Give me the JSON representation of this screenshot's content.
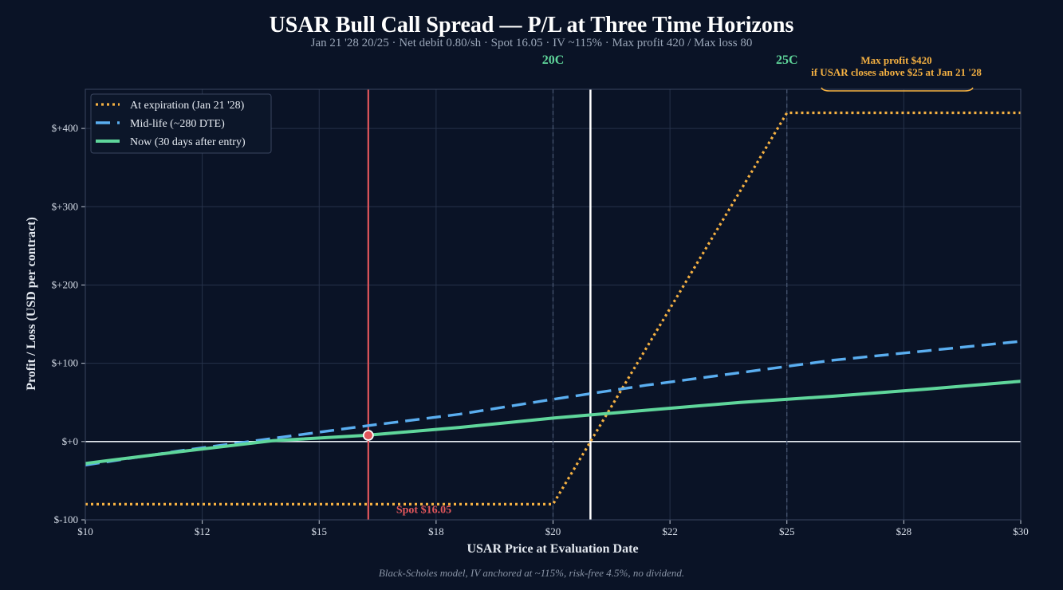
{
  "title": "USAR Bull Call Spread — P/L at Three Time Horizons",
  "subtitle": "Jan 21 '28 20/25 · Net debit 0.80/sh · Spot 16.05 · IV ~115% · Max profit 420 / Max loss 80",
  "footnote": "Black-Scholes model, IV anchored at ~115%, risk-free 4.5%, no dividend.",
  "colors": {
    "background": "#0a1326",
    "expiration": "#f5b142",
    "midlife": "#5aaef0",
    "now": "#5fd69b",
    "spot": "#e0565b",
    "breakeven": "#ffffff",
    "grid": "#26324a"
  },
  "chart_data": {
    "type": "line",
    "xlabel": "USAR Price at Evaluation Date",
    "ylabel": "Profit / Loss (USD per contract)",
    "xlim": [
      10,
      30
    ],
    "ylim": [
      -100,
      450
    ],
    "x_ticks": [
      {
        "value": 10,
        "label": "$10"
      },
      {
        "value": 12.5,
        "label": "$12"
      },
      {
        "value": 15,
        "label": "$15"
      },
      {
        "value": 17.5,
        "label": "$18"
      },
      {
        "value": 20,
        "label": "$20"
      },
      {
        "value": 22.5,
        "label": "$22"
      },
      {
        "value": 25,
        "label": "$25"
      },
      {
        "value": 27.5,
        "label": "$28"
      },
      {
        "value": 30,
        "label": "$30"
      }
    ],
    "y_ticks": [
      {
        "value": -100,
        "label": "$-100"
      },
      {
        "value": 0,
        "label": "$+0"
      },
      {
        "value": 100,
        "label": "$+100"
      },
      {
        "value": 200,
        "label": "$+200"
      },
      {
        "value": 300,
        "label": "$+300"
      },
      {
        "value": 400,
        "label": "$+400"
      }
    ],
    "grid": true,
    "legend_position": "top-left",
    "series": [
      {
        "name": "At expiration (Jan 21 '28)",
        "style": "dotted",
        "color": "#f5b142",
        "x": [
          10,
          20,
          25,
          30
        ],
        "y": [
          -80,
          -80,
          420,
          420
        ]
      },
      {
        "name": "Mid-life (~280 DTE)",
        "style": "dashed",
        "color": "#5aaef0",
        "x": [
          10,
          12,
          14,
          16,
          18,
          20,
          22,
          24,
          26,
          28,
          30
        ],
        "y": [
          -30,
          -12,
          4,
          20,
          35,
          54,
          72,
          88,
          104,
          116,
          128
        ]
      },
      {
        "name": "Now (30 days after entry)",
        "style": "solid",
        "color": "#5fd69b",
        "x": [
          10,
          12,
          14,
          16,
          18,
          20,
          22,
          24,
          26,
          28,
          30
        ],
        "y": [
          -28,
          -13,
          1,
          8,
          18,
          30,
          40,
          50,
          58,
          67,
          77
        ]
      }
    ],
    "strikes": [
      {
        "value": 20,
        "label": "20C"
      },
      {
        "value": 25,
        "label": "25C"
      }
    ],
    "spot": {
      "value": 16.05,
      "label": "Spot $16.05",
      "pl": 8
    },
    "breakeven": 20.8,
    "annotation": {
      "line1": "Max profit $420",
      "line2": "if USAR closes above $25 at Jan 21 '28"
    }
  }
}
